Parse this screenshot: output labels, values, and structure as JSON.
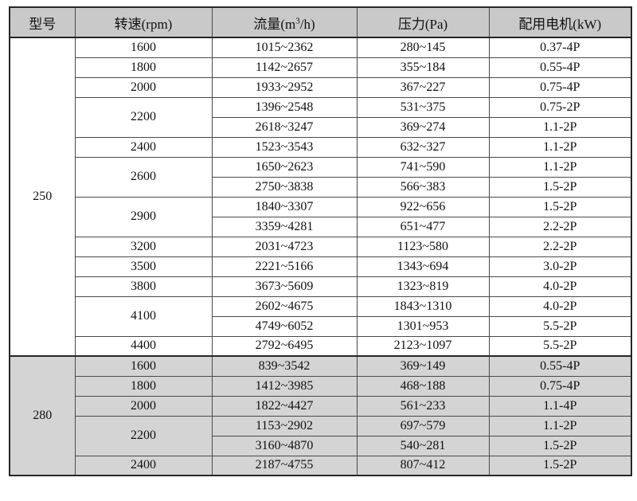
{
  "table": {
    "headers": {
      "model": "型号",
      "speed": "转速(rpm)",
      "flow_prefix": "流量(m",
      "flow_sup": "3",
      "flow_suffix": "/h)",
      "pressure": "压力(Pa)",
      "motor": "配用电机(kW)"
    },
    "sections": [
      {
        "model": "250",
        "shaded": false,
        "groups": [
          {
            "speed": "1600",
            "rows": [
              {
                "flow": "1015~2362",
                "pressure": "280~145",
                "motor": "0.37-4P"
              }
            ]
          },
          {
            "speed": "1800",
            "rows": [
              {
                "flow": "1142~2657",
                "pressure": "355~184",
                "motor": "0.55-4P"
              }
            ]
          },
          {
            "speed": "2000",
            "rows": [
              {
                "flow": "1933~2952",
                "pressure": "367~227",
                "motor": "0.75-4P"
              }
            ]
          },
          {
            "speed": "2200",
            "rows": [
              {
                "flow": "1396~2548",
                "pressure": "531~375",
                "motor": "0.75-2P"
              },
              {
                "flow": "2618~3247",
                "pressure": "369~274",
                "motor": "1.1-2P"
              }
            ]
          },
          {
            "speed": "2400",
            "rows": [
              {
                "flow": "1523~3543",
                "pressure": "632~327",
                "motor": "1.1-2P"
              }
            ]
          },
          {
            "speed": "2600",
            "rows": [
              {
                "flow": "1650~2623",
                "pressure": "741~590",
                "motor": "1.1-2P"
              },
              {
                "flow": "2750~3838",
                "pressure": "566~383",
                "motor": "1.5-2P"
              }
            ]
          },
          {
            "speed": "2900",
            "rows": [
              {
                "flow": "1840~3307",
                "pressure": "922~656",
                "motor": "1.5-2P"
              },
              {
                "flow": "3359~4281",
                "pressure": "651~477",
                "motor": "2.2-2P"
              }
            ]
          },
          {
            "speed": "3200",
            "rows": [
              {
                "flow": "2031~4723",
                "pressure": "1123~580",
                "motor": "2.2-2P"
              }
            ]
          },
          {
            "speed": "3500",
            "rows": [
              {
                "flow": "2221~5166",
                "pressure": "1343~694",
                "motor": "3.0-2P"
              }
            ]
          },
          {
            "speed": "3800",
            "rows": [
              {
                "flow": "3673~5609",
                "pressure": "1323~819",
                "motor": "4.0-2P"
              }
            ]
          },
          {
            "speed": "4100",
            "rows": [
              {
                "flow": "2602~4675",
                "pressure": "1843~1310",
                "motor": "4.0-2P"
              },
              {
                "flow": "4749~6052",
                "pressure": "1301~953",
                "motor": "5.5-2P"
              }
            ]
          },
          {
            "speed": "4400",
            "rows": [
              {
                "flow": "2792~6495",
                "pressure": "2123~1097",
                "motor": "5.5-2P"
              }
            ]
          }
        ]
      },
      {
        "model": "280",
        "shaded": true,
        "groups": [
          {
            "speed": "1600",
            "rows": [
              {
                "flow": "839~3542",
                "pressure": "369~149",
                "motor": "0.55-4P"
              }
            ]
          },
          {
            "speed": "1800",
            "rows": [
              {
                "flow": "1412~3985",
                "pressure": "468~188",
                "motor": "0.75-4P"
              }
            ]
          },
          {
            "speed": "2000",
            "rows": [
              {
                "flow": "1822~4427",
                "pressure": "561~233",
                "motor": "1.1-4P"
              }
            ]
          },
          {
            "speed": "2200",
            "rows": [
              {
                "flow": "1153~2902",
                "pressure": "697~579",
                "motor": "1.1-2P"
              },
              {
                "flow": "3160~4870",
                "pressure": "540~281",
                "motor": "1.5-2P"
              }
            ]
          },
          {
            "speed": "2400",
            "rows": [
              {
                "flow": "2187~4755",
                "pressure": "807~412",
                "motor": "1.5-2P"
              }
            ]
          }
        ]
      }
    ],
    "colors": {
      "header_bg": "#c9c9c9",
      "shaded_row_bg": "#d4d4d4",
      "border": "#4a4a4a",
      "frame_border": "#262626"
    }
  }
}
